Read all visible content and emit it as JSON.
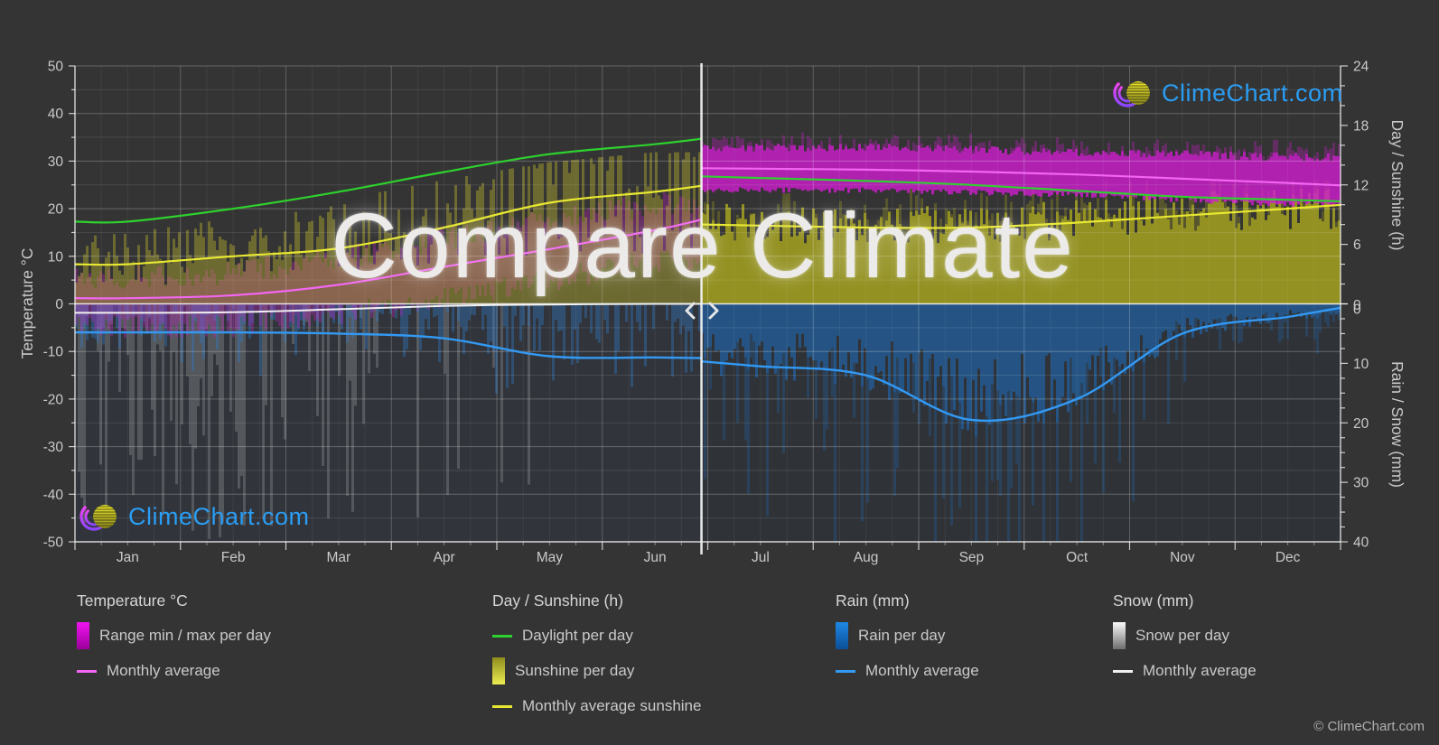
{
  "branding": {
    "logo_text": "ClimeChart.com",
    "copyright": "© ClimeChart.com"
  },
  "colors": {
    "background": "#343434",
    "brand_blue": "#2a9df4",
    "temp_bar": "#d01dd0",
    "temp_line": "#f266f2",
    "daylight_line": "#2ed12e",
    "sunshine_bar": "#c8bf2e",
    "sunshine_bar_right": "#a5a21f",
    "sunshine_line": "#e8e832",
    "rain_bar": "#2f7fd2",
    "rain_bar_right": "#1d6fc2",
    "rain_line": "#3399f3",
    "snow_bar": "#b9b9b9",
    "snow_line": "#f0f0f0",
    "grid_major": "rgba(255,255,255,0.25)",
    "grid_minor": "rgba(255,255,255,0.10)",
    "zero_line": "rgba(255,255,255,0.85)",
    "axis_text": "#c9c9c9"
  },
  "chart_data": {
    "type": "area",
    "watermark": "Compare Climate",
    "months": [
      "Jan",
      "Feb",
      "Mar",
      "Apr",
      "May",
      "Jun",
      "Jul",
      "Aug",
      "Sep",
      "Oct",
      "Nov",
      "Dec"
    ],
    "axes": {
      "temperature": {
        "title": "Temperature °C",
        "min": -50,
        "max": 50,
        "ticks": [
          50,
          40,
          30,
          20,
          10,
          0,
          -10,
          -20,
          -30,
          -40,
          -50
        ]
      },
      "day_sunshine": {
        "title": "Day / Sunshine (h)",
        "min": 0,
        "max": 24,
        "ticks": [
          24,
          18,
          12,
          6,
          0
        ]
      },
      "rain_snow": {
        "title": "Rain / Snow (mm)",
        "min": 0,
        "max": 40,
        "inverted": true,
        "ticks": [
          0,
          10,
          20,
          30,
          40
        ]
      }
    },
    "divider": {
      "month_position": 5.94,
      "left_arrow": "‹",
      "right_arrow": "›"
    },
    "locations": {
      "left": {
        "months": [
          "Jan",
          "Feb",
          "Mar",
          "Apr",
          "May",
          "Jun"
        ],
        "daylight_h": [
          8.3,
          9.6,
          11.3,
          13.3,
          15.1,
          16.1
        ],
        "sunshine_avg_h": [
          4.0,
          4.8,
          5.6,
          7.7,
          10.2,
          11.3
        ],
        "temp_avg_c": [
          1.2,
          1.8,
          4.0,
          7.8,
          11.5,
          15.5
        ],
        "temp_max_c": [
          5.5,
          6.5,
          9.5,
          13.5,
          17.5,
          21.0
        ],
        "temp_min_c": [
          -4.0,
          -3.5,
          -1.0,
          2.0,
          6.0,
          10.0
        ],
        "rain_avg_mm": [
          4.8,
          4.8,
          5.0,
          5.8,
          8.8,
          9.0
        ],
        "snow_avg_mm": [
          1.5,
          1.4,
          0.9,
          0.35,
          0.1,
          0
        ]
      },
      "right": {
        "months": [
          "Jul",
          "Aug",
          "Sep",
          "Oct",
          "Nov",
          "Dec"
        ],
        "daylight_h": [
          12.7,
          12.4,
          12.0,
          11.4,
          10.8,
          10.5
        ],
        "sunshine_avg_h": [
          7.9,
          7.7,
          7.7,
          8.2,
          8.9,
          9.6
        ],
        "temp_avg_c": [
          28.4,
          28.2,
          27.8,
          27.2,
          26.3,
          25.4
        ],
        "temp_max_c": [
          32.0,
          32.0,
          31.5,
          31.0,
          30.5,
          30.0
        ],
        "temp_min_c": [
          24.5,
          24.5,
          24.0,
          23.5,
          22.5,
          21.5
        ],
        "rain_avg_mm": [
          10.5,
          12.0,
          19.5,
          16.0,
          5.0,
          2.2
        ],
        "snow_avg_mm": [
          0,
          0,
          0,
          0,
          0,
          0
        ]
      }
    }
  },
  "legend": {
    "groups": [
      {
        "title": "Temperature °C",
        "items": [
          {
            "label": "Range min / max per day",
            "swatch": {
              "kind": "bar",
              "from": "#f013f0",
              "to": "#9c009c"
            }
          },
          {
            "label": "Monthly average",
            "swatch": {
              "kind": "line",
              "color": "#f266f2"
            }
          }
        ]
      },
      {
        "title": "Day / Sunshine (h)",
        "items": [
          {
            "label": "Daylight per day",
            "swatch": {
              "kind": "line",
              "color": "#2ed12e"
            }
          },
          {
            "label": "Sunshine per day",
            "swatch": {
              "kind": "bar",
              "from": "#8f8c1c",
              "to": "#ecec52"
            }
          },
          {
            "label": "Monthly average sunshine",
            "swatch": {
              "kind": "line",
              "color": "#e8e832"
            }
          }
        ]
      },
      {
        "title": "Rain (mm)",
        "items": [
          {
            "label": "Rain per day",
            "swatch": {
              "kind": "bar",
              "from": "#1e88e5",
              "to": "#0c4f96"
            }
          },
          {
            "label": "Monthly average",
            "swatch": {
              "kind": "line",
              "color": "#3399f3"
            }
          }
        ]
      },
      {
        "title": "Snow (mm)",
        "items": [
          {
            "label": "Snow per day",
            "swatch": {
              "kind": "bar",
              "from": "#fafafa",
              "to": "#6e6e6e"
            }
          },
          {
            "label": "Monthly average",
            "swatch": {
              "kind": "line",
              "color": "#f0f0f0"
            }
          }
        ]
      }
    ]
  }
}
